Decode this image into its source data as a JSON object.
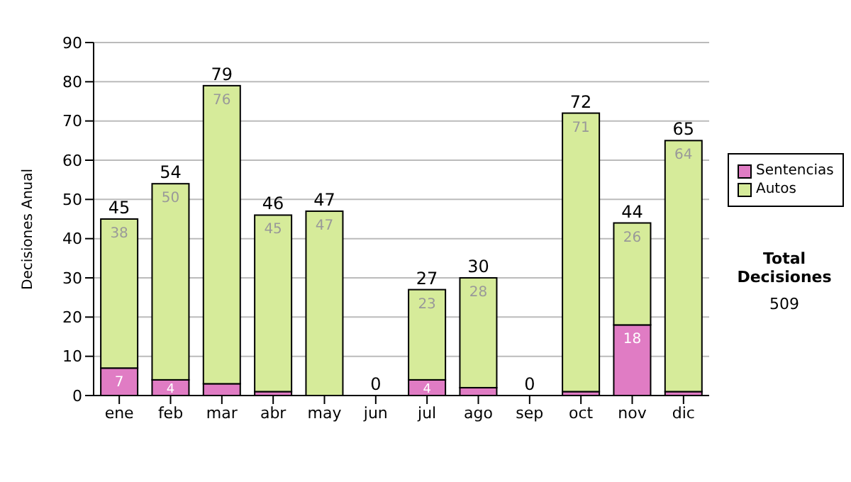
{
  "chart_data": {
    "type": "bar",
    "stacked": true,
    "categories": [
      "ene",
      "feb",
      "mar",
      "abr",
      "may",
      "jun",
      "jul",
      "ago",
      "sep",
      "oct",
      "nov",
      "dic"
    ],
    "series": [
      {
        "name": "Sentencias",
        "color": "#e07cc4",
        "values": [
          7,
          4,
          3,
          1,
          0,
          0,
          4,
          2,
          0,
          1,
          18,
          1
        ],
        "value_labels": [
          "7",
          "4",
          null,
          null,
          null,
          null,
          "4",
          null,
          null,
          null,
          "18",
          null
        ]
      },
      {
        "name": "Autos",
        "color": "#d6eb9a",
        "values": [
          38,
          50,
          76,
          45,
          47,
          0,
          23,
          28,
          0,
          71,
          26,
          64
        ],
        "value_labels": [
          "38",
          "50",
          "76",
          "45",
          "47",
          null,
          "23",
          "28",
          null,
          "71",
          "26",
          "64"
        ]
      }
    ],
    "totals": [
      "45",
      "54",
      "79",
      "46",
      "47",
      "0",
      "27",
      "30",
      "0",
      "72",
      "44",
      "65"
    ],
    "ylabel": "Decisiones Anual",
    "ylim": [
      0,
      90
    ],
    "yticks": [
      0,
      10,
      20,
      30,
      40,
      50,
      60,
      70,
      80,
      90
    ],
    "grid": "y",
    "legend": "right",
    "annotations": [
      "Total Decisiones",
      "509"
    ]
  }
}
